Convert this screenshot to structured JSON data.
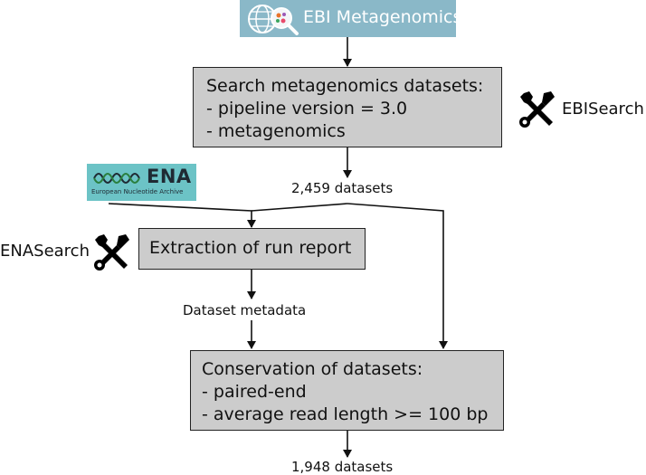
{
  "logos": {
    "ebi": "EBI Metagenomics",
    "ena_big": "ENA",
    "ena_small": "European Nucleotide Archive"
  },
  "nodes": {
    "search": {
      "lines": [
        "Search metagenomics datasets:",
        "- pipeline version = 3.0",
        "- metagenomics"
      ]
    },
    "extraction": {
      "lines": [
        "Extraction of run report"
      ]
    },
    "conservation": {
      "lines": [
        "Conservation of datasets:",
        "- paired-end",
        "- average read length >= 100 bp"
      ]
    }
  },
  "edge_labels": {
    "after_search": "2,459 datasets",
    "after_extraction": "Dataset metadata",
    "after_conservation": "1,948 datasets"
  },
  "tools": {
    "ebi": "EBISearch",
    "ena": "ENASearch"
  },
  "icons": [
    "globe-magnifier-icon",
    "dna-wave-icon",
    "wrench-screwdriver-icon"
  ]
}
